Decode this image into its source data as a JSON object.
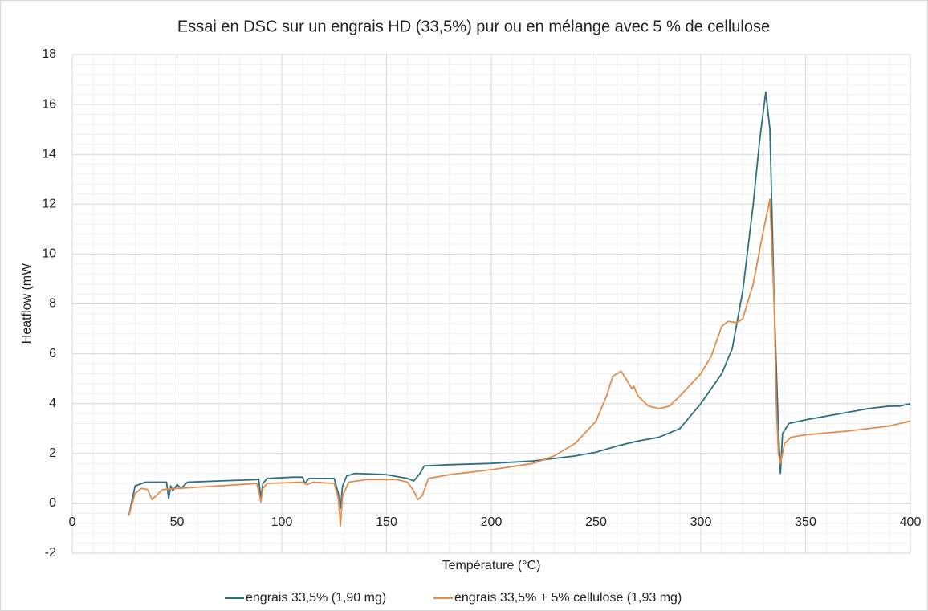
{
  "chart_data": {
    "type": "line",
    "title": "Essai en DSC sur un engrais HD (33,5%) pur ou en mélange avec 5 % de cellulose",
    "xlabel": "Température (°C)",
    "ylabel": "Heatflow (mW",
    "xlim": [
      0,
      400
    ],
    "xticks": [
      0,
      50,
      100,
      150,
      200,
      250,
      300,
      350,
      400
    ],
    "ylim": [
      -2,
      18
    ],
    "yticks": [
      -2,
      0,
      2,
      4,
      6,
      8,
      10,
      12,
      14,
      16,
      18
    ],
    "grid": true,
    "minor_grid": {
      "x": 10,
      "y": 0.4
    },
    "legend": "bottom",
    "series": [
      {
        "name": "engrais 33,5% (1,90 mg)",
        "color": "#2f6f80",
        "x": [
          27,
          30,
          35,
          45,
          46,
          47,
          48,
          50,
          52,
          55,
          70,
          88,
          89,
          90,
          91,
          93,
          105,
          110,
          111,
          113,
          125,
          127,
          128,
          129,
          131,
          135,
          150,
          160,
          163,
          166,
          168,
          180,
          200,
          220,
          240,
          250,
          260,
          270,
          280,
          290,
          300,
          310,
          315,
          320,
          325,
          328,
          331,
          333,
          335,
          337,
          338,
          339,
          342,
          350,
          360,
          380,
          390,
          395,
          400
        ],
        "values": [
          -0.5,
          0.7,
          0.85,
          0.85,
          0.2,
          0.7,
          0.5,
          0.75,
          0.6,
          0.85,
          0.9,
          0.95,
          0.97,
          0.2,
          0.8,
          1.0,
          1.05,
          1.05,
          0.8,
          1.0,
          1.0,
          0.4,
          -0.2,
          0.7,
          1.1,
          1.2,
          1.15,
          1.0,
          0.9,
          1.2,
          1.5,
          1.55,
          1.6,
          1.7,
          1.9,
          2.05,
          2.3,
          2.5,
          2.65,
          3.0,
          4.0,
          5.2,
          6.2,
          8.5,
          12,
          14.5,
          16.5,
          15,
          8,
          3,
          1.2,
          2.8,
          3.2,
          3.35,
          3.5,
          3.8,
          3.9,
          3.9,
          4.0
        ]
      },
      {
        "name": "engrais 33,5% + 5% cellulose (1,93 mg)",
        "color": "#e38d4d",
        "x": [
          27,
          30,
          33,
          36,
          38,
          40,
          43,
          50,
          70,
          88,
          89,
          90,
          91,
          93,
          110,
          112,
          115,
          125,
          127,
          128,
          129,
          132,
          140,
          155,
          160,
          163,
          165,
          167,
          170,
          180,
          200,
          220,
          230,
          240,
          250,
          255,
          258,
          262,
          265,
          267,
          268,
          270,
          275,
          280,
          285,
          290,
          300,
          305,
          310,
          313,
          317,
          320,
          325,
          330,
          333,
          335,
          336,
          337,
          338,
          340,
          343,
          350,
          370,
          390,
          400
        ],
        "values": [
          -0.5,
          0.4,
          0.6,
          0.55,
          0.15,
          0.3,
          0.55,
          0.6,
          0.7,
          0.8,
          0.5,
          0.05,
          0.6,
          0.8,
          0.85,
          0.75,
          0.85,
          0.8,
          0.2,
          -0.9,
          0.3,
          0.85,
          0.95,
          0.95,
          0.85,
          0.5,
          0.15,
          0.3,
          1.0,
          1.15,
          1.35,
          1.6,
          1.9,
          2.4,
          3.3,
          4.3,
          5.1,
          5.3,
          4.9,
          4.6,
          4.7,
          4.3,
          3.9,
          3.8,
          3.9,
          4.3,
          5.2,
          5.9,
          7.1,
          7.3,
          7.25,
          7.4,
          8.8,
          11.0,
          12.2,
          8,
          4,
          2,
          1.6,
          2.4,
          2.65,
          2.75,
          2.9,
          3.1,
          3.3
        ]
      }
    ]
  }
}
